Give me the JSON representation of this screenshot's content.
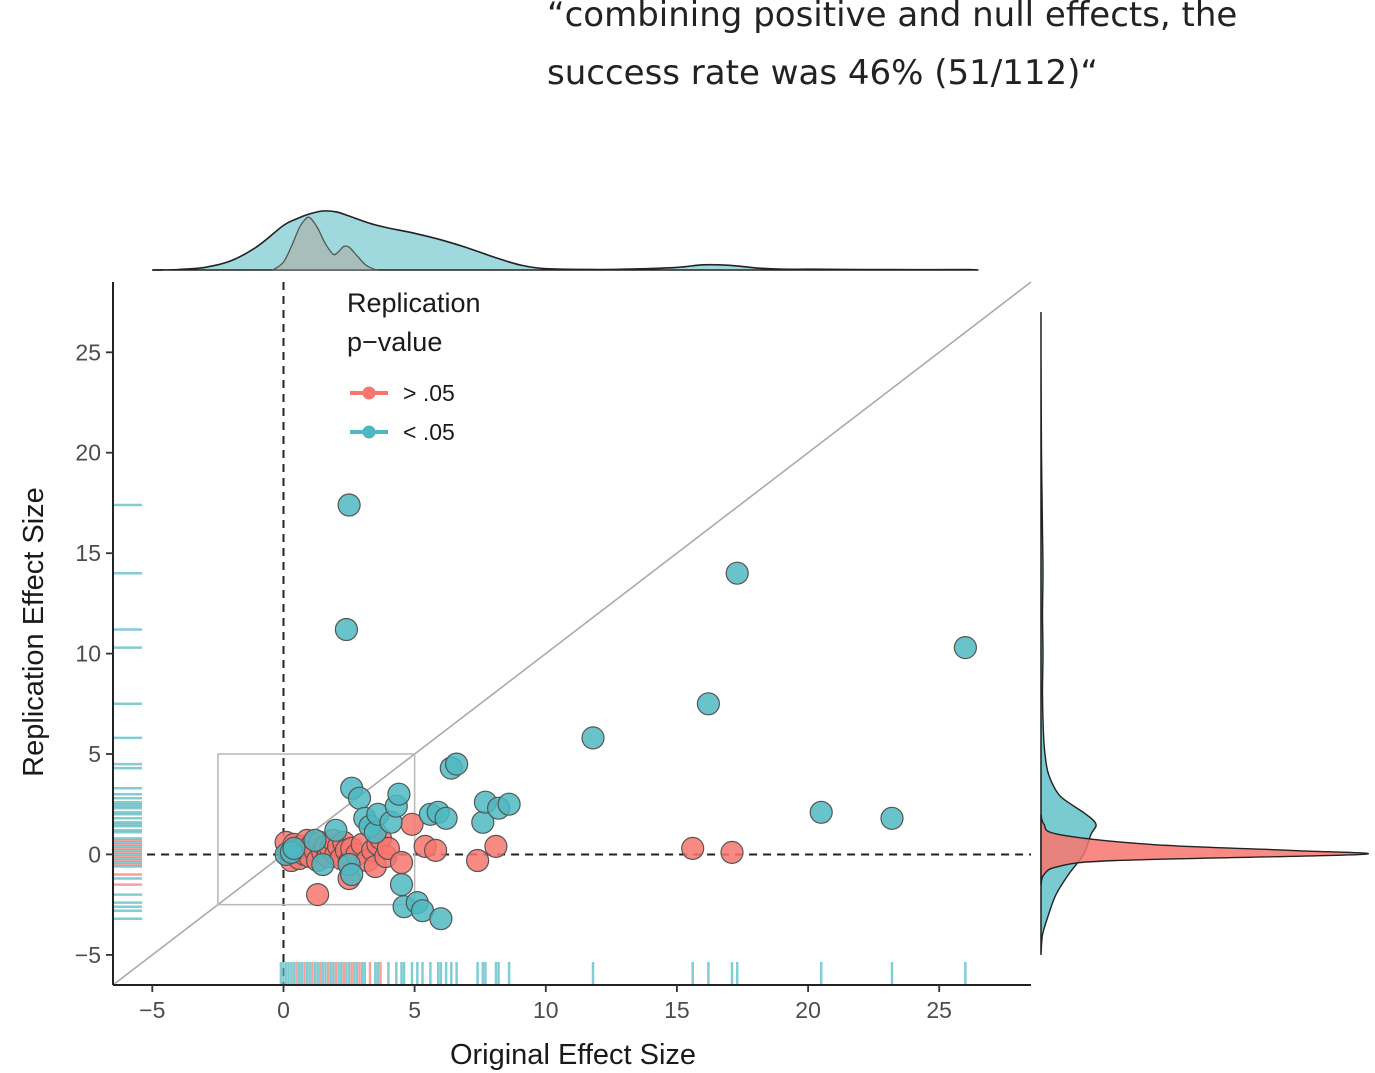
{
  "annotation": {
    "line1": "“combining positive and null effects, the",
    "line2": "success rate was 46% (51/112)“"
  },
  "colors": {
    "nonsignificant": "#F8766D",
    "significant": "#4DB8C2",
    "density_top": "#9FD8DD",
    "density_inner": "#A9BDB7",
    "reference_line": "#aaaaaa"
  },
  "chart_data": {
    "type": "scatter",
    "xlabel": "Original Effect Size",
    "ylabel": "Replication Effect Size",
    "xlim": [
      -6.5,
      28.5
    ],
    "ylim": [
      -6.5,
      28.5
    ],
    "xticks": [
      -5,
      0,
      5,
      10,
      15,
      20,
      25
    ],
    "yticks": [
      -5,
      0,
      5,
      10,
      15,
      20,
      25
    ],
    "tick_labels": [
      "−5",
      "0",
      "5",
      "10",
      "15",
      "20",
      "25"
    ],
    "reference_lines": {
      "diagonal": "y = x",
      "horizontal": 0,
      "vertical": 0
    },
    "zoom_box": {
      "x": [
        -2.5,
        5
      ],
      "y": [
        -2.5,
        5
      ]
    },
    "legend": {
      "title_line1": "Replication",
      "title_line2": "p−value",
      "position": "top-left",
      "entries": [
        {
          "label": "> .05",
          "series": "nonsignificant"
        },
        {
          "label": "< .05",
          "series": "significant"
        }
      ]
    },
    "marginals": {
      "top": "density of original effect size",
      "right": "density of replication effect size",
      "rugs": true
    },
    "series": [
      {
        "name": "> .05",
        "points": [
          [
            0.1,
            0.6
          ],
          [
            0.2,
            0.1
          ],
          [
            0.3,
            -0.3
          ],
          [
            0.4,
            0.5
          ],
          [
            0.5,
            0.2
          ],
          [
            0.6,
            -0.2
          ],
          [
            0.7,
            0.4
          ],
          [
            0.8,
            0.0
          ],
          [
            0.9,
            0.7
          ],
          [
            1.0,
            0.3
          ],
          [
            1.0,
            -0.1
          ],
          [
            1.1,
            0.5
          ],
          [
            1.2,
            0.2
          ],
          [
            1.3,
            -0.3
          ],
          [
            1.4,
            0.6
          ],
          [
            1.5,
            0.1
          ],
          [
            1.6,
            0.4
          ],
          [
            1.7,
            -0.1
          ],
          [
            1.8,
            0.3
          ],
          [
            1.9,
            0.7
          ],
          [
            2.0,
            0.0
          ],
          [
            2.1,
            0.4
          ],
          [
            2.2,
            -0.2
          ],
          [
            2.3,
            0.6
          ],
          [
            2.4,
            0.2
          ],
          [
            2.5,
            -0.4
          ],
          [
            2.6,
            0.3
          ],
          [
            2.8,
            0.0
          ],
          [
            3.0,
            0.5
          ],
          [
            3.2,
            -0.3
          ],
          [
            3.4,
            0.2
          ],
          [
            3.5,
            -0.6
          ],
          [
            3.6,
            0.5
          ],
          [
            3.7,
            0.8
          ],
          [
            3.9,
            -0.1
          ],
          [
            4.0,
            0.3
          ],
          [
            1.3,
            -2.0
          ],
          [
            2.5,
            -1.2
          ],
          [
            4.5,
            -0.4
          ],
          [
            4.9,
            1.5
          ],
          [
            5.4,
            0.4
          ],
          [
            5.8,
            0.2
          ],
          [
            7.4,
            -0.3
          ],
          [
            8.1,
            0.4
          ],
          [
            15.6,
            0.3
          ],
          [
            17.1,
            0.1
          ]
        ]
      },
      {
        "name": "< .05",
        "points": [
          [
            0.1,
            0.0
          ],
          [
            0.3,
            0.1
          ],
          [
            0.4,
            0.3
          ],
          [
            1.2,
            0.7
          ],
          [
            1.5,
            -0.5
          ],
          [
            2.0,
            1.2
          ],
          [
            2.5,
            -0.5
          ],
          [
            2.6,
            -1.0
          ],
          [
            2.5,
            17.4
          ],
          [
            2.4,
            11.2
          ],
          [
            2.6,
            3.3
          ],
          [
            2.9,
            2.8
          ],
          [
            3.1,
            1.8
          ],
          [
            3.3,
            1.4
          ],
          [
            3.5,
            1.1
          ],
          [
            3.6,
            2.0
          ],
          [
            4.1,
            1.6
          ],
          [
            4.3,
            2.4
          ],
          [
            4.4,
            3.0
          ],
          [
            4.5,
            -1.5
          ],
          [
            4.6,
            -2.6
          ],
          [
            5.1,
            -2.4
          ],
          [
            5.3,
            -2.8
          ],
          [
            5.6,
            2.0
          ],
          [
            5.9,
            2.1
          ],
          [
            6.0,
            -3.2
          ],
          [
            6.2,
            1.8
          ],
          [
            6.4,
            4.3
          ],
          [
            6.6,
            4.5
          ],
          [
            7.6,
            1.6
          ],
          [
            7.7,
            2.6
          ],
          [
            8.2,
            2.3
          ],
          [
            8.6,
            2.5
          ],
          [
            11.8,
            5.8
          ],
          [
            16.2,
            7.5
          ],
          [
            17.3,
            14.0
          ],
          [
            20.5,
            2.1
          ],
          [
            23.2,
            1.8
          ],
          [
            26.0,
            10.3
          ]
        ]
      }
    ],
    "rug_x": [
      -0.1,
      0.0,
      0.1,
      0.2,
      0.3,
      0.4,
      0.5,
      0.6,
      0.7,
      0.8,
      0.9,
      1.0,
      1.1,
      1.2,
      1.3,
      1.4,
      1.5,
      1.6,
      1.7,
      1.8,
      1.9,
      2.0,
      2.1,
      2.2,
      2.3,
      2.4,
      2.5,
      2.6,
      2.7,
      2.8,
      2.9,
      3.0,
      3.1,
      3.3,
      3.5,
      3.6,
      3.7,
      4.0,
      4.3,
      4.5,
      4.6,
      4.9,
      5.1,
      5.3,
      5.6,
      5.9,
      6.0,
      6.2,
      6.4,
      6.6,
      7.4,
      7.6,
      7.7,
      8.1,
      8.2,
      8.6,
      11.8,
      15.6,
      16.2,
      17.1,
      17.3,
      20.5,
      23.2,
      26.0
    ],
    "rug_y": [
      17.4,
      14.0,
      11.2,
      10.3,
      7.5,
      5.8,
      4.5,
      4.3,
      3.3,
      3.0,
      2.8,
      2.6,
      2.5,
      2.4,
      2.3,
      2.1,
      2.0,
      1.8,
      1.6,
      1.5,
      1.4,
      1.2,
      1.1,
      0.8,
      0.7,
      0.6,
      0.5,
      0.4,
      0.3,
      0.2,
      0.1,
      0.0,
      -0.1,
      -0.2,
      -0.3,
      -0.4,
      -0.5,
      -0.6,
      -1.0,
      -1.2,
      -1.5,
      -2.0,
      -2.4,
      -2.6,
      -2.8,
      -3.2
    ],
    "density_top_outer": [
      [
        -5,
        0
      ],
      [
        -4,
        0.002
      ],
      [
        -3,
        0.01
      ],
      [
        -2,
        0.035
      ],
      [
        -1,
        0.09
      ],
      [
        0,
        0.17
      ],
      [
        0.5,
        0.195
      ],
      [
        1,
        0.214
      ],
      [
        1.5,
        0.225
      ],
      [
        2,
        0.222
      ],
      [
        2.5,
        0.206
      ],
      [
        3,
        0.188
      ],
      [
        3.5,
        0.172
      ],
      [
        4,
        0.16
      ],
      [
        5,
        0.14
      ],
      [
        6,
        0.115
      ],
      [
        7,
        0.085
      ],
      [
        8,
        0.05
      ],
      [
        9,
        0.02
      ],
      [
        10,
        0.005
      ],
      [
        12,
        0.002
      ],
      [
        13,
        0.003
      ],
      [
        15,
        0.01
      ],
      [
        16,
        0.02
      ],
      [
        17,
        0.018
      ],
      [
        18,
        0.008
      ],
      [
        19,
        0.003
      ],
      [
        20,
        0.003
      ],
      [
        22,
        0.002
      ],
      [
        24,
        0.001
      ],
      [
        26,
        0.002
      ],
      [
        26.5,
        0.0
      ]
    ],
    "density_top_inner": [
      [
        -0.4,
        0
      ],
      [
        0,
        0.03
      ],
      [
        0.3,
        0.09
      ],
      [
        0.6,
        0.16
      ],
      [
        0.8,
        0.19
      ],
      [
        1.0,
        0.2
      ],
      [
        1.3,
        0.16
      ],
      [
        1.6,
        0.1
      ],
      [
        1.9,
        0.06
      ],
      [
        2.1,
        0.07
      ],
      [
        2.3,
        0.09
      ],
      [
        2.5,
        0.087
      ],
      [
        2.8,
        0.055
      ],
      [
        3.1,
        0.022
      ],
      [
        3.4,
        0.005
      ],
      [
        3.6,
        0.0
      ]
    ],
    "density_right_significant": [
      [
        -5,
        0
      ],
      [
        -4,
        0.003
      ],
      [
        -3,
        0.015
      ],
      [
        -2,
        0.03
      ],
      [
        -1,
        0.055
      ],
      [
        0,
        0.085
      ],
      [
        1,
        0.1
      ],
      [
        1.5,
        0.11
      ],
      [
        2,
        0.09
      ],
      [
        2.5,
        0.06
      ],
      [
        3,
        0.035
      ],
      [
        4,
        0.015
      ],
      [
        5,
        0.008
      ],
      [
        6,
        0.005
      ],
      [
        8,
        0.003
      ],
      [
        10,
        0.004
      ],
      [
        12,
        0.003
      ],
      [
        14,
        0.004
      ],
      [
        16,
        0.003
      ],
      [
        18,
        0.002
      ],
      [
        20,
        0.001
      ],
      [
        25,
        0.0
      ],
      [
        27,
        0.0
      ]
    ],
    "density_right_nonsignificant": [
      [
        -1.5,
        0
      ],
      [
        -1,
        0.006
      ],
      [
        -0.6,
        0.035
      ],
      [
        -0.3,
        0.15
      ],
      [
        0,
        0.64
      ],
      [
        0.2,
        0.5
      ],
      [
        0.5,
        0.22
      ],
      [
        1,
        0.035
      ],
      [
        1.5,
        0.006
      ],
      [
        2,
        0
      ]
    ]
  }
}
